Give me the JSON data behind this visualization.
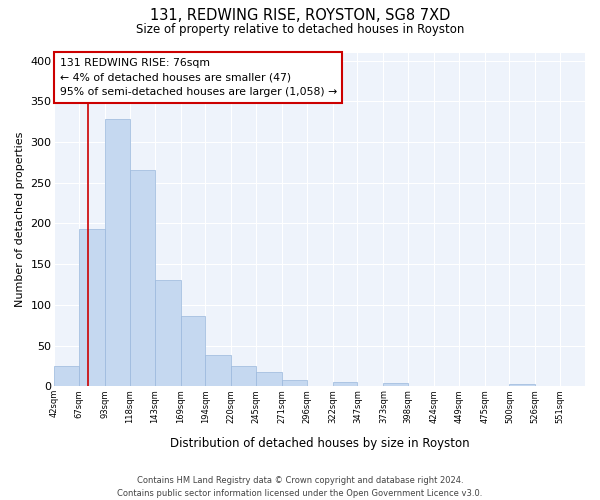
{
  "title": "131, REDWING RISE, ROYSTON, SG8 7XD",
  "subtitle": "Size of property relative to detached houses in Royston",
  "xlabel": "Distribution of detached houses by size in Royston",
  "ylabel": "Number of detached properties",
  "bar_values": [
    25,
    193,
    328,
    266,
    130,
    86,
    38,
    25,
    18,
    8,
    0,
    5,
    0,
    4,
    0,
    0,
    0,
    0,
    3,
    0,
    0
  ],
  "bin_labels": [
    "42sqm",
    "67sqm",
    "93sqm",
    "118sqm",
    "143sqm",
    "169sqm",
    "194sqm",
    "220sqm",
    "245sqm",
    "271sqm",
    "296sqm",
    "322sqm",
    "347sqm",
    "373sqm",
    "398sqm",
    "424sqm",
    "449sqm",
    "475sqm",
    "500sqm",
    "526sqm",
    "551sqm"
  ],
  "bar_color": "#c5d8f0",
  "bar_edge_color": "#9ab8dc",
  "bin_edges": [
    42,
    67,
    93,
    118,
    143,
    169,
    194,
    220,
    245,
    271,
    296,
    322,
    347,
    373,
    398,
    424,
    449,
    475,
    500,
    526,
    551,
    576
  ],
  "vline_color": "#cc0000",
  "vline_x": 76,
  "ylim": [
    0,
    410
  ],
  "yticks": [
    0,
    50,
    100,
    150,
    200,
    250,
    300,
    350,
    400
  ],
  "footer_line1": "Contains HM Land Registry data © Crown copyright and database right 2024.",
  "footer_line2": "Contains public sector information licensed under the Open Government Licence v3.0.",
  "background_color": "#ffffff",
  "plot_bg_color": "#eef3fb",
  "grid_color": "#ffffff",
  "annotation_box_edgecolor": "#cc0000",
  "annotation_title": "131 REDWING RISE: 76sqm",
  "annotation_line1": "← 4% of detached houses are smaller (47)",
  "annotation_line2": "95% of semi-detached houses are larger (1,058) →"
}
